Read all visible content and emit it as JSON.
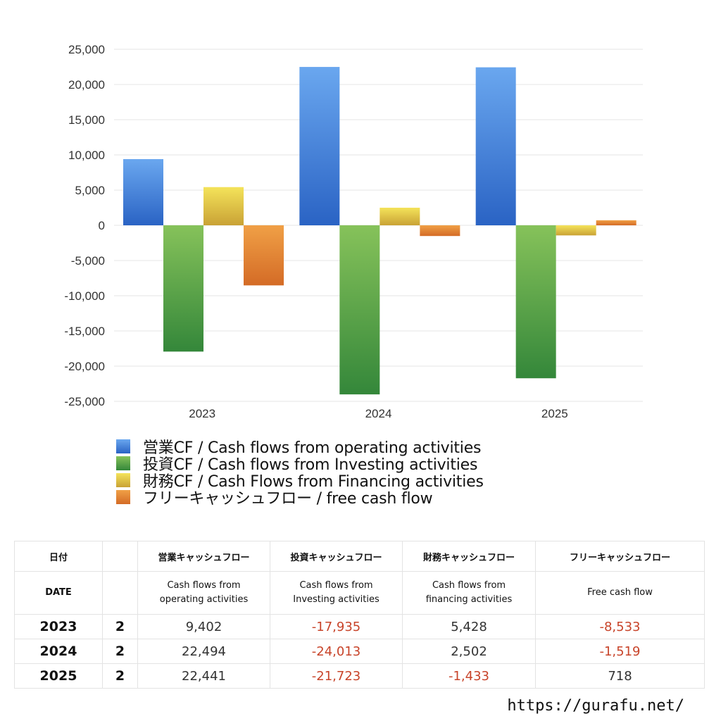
{
  "chart_data": {
    "type": "bar",
    "categories": [
      "2023",
      "2024",
      "2025"
    ],
    "ylim": [
      -25000,
      25000
    ],
    "yticks": [
      25000,
      20000,
      15000,
      10000,
      5000,
      0,
      -5000,
      -10000,
      -15000,
      -20000,
      -25000
    ],
    "ytick_labels": [
      "25,000",
      "20,000",
      "15,000",
      "10,000",
      "5,000",
      "0",
      "-5,000",
      "-10,000",
      "-15,000",
      "-20,000",
      "-25,000"
    ],
    "grid": true,
    "legend_position": "bottom",
    "series": [
      {
        "name": "営業CF / Cash flows from operating activities",
        "values": [
          9402,
          22494,
          22441
        ],
        "color_top": "#6aa7ef",
        "color_bottom": "#2a63c4"
      },
      {
        "name": "投資CF / Cash flows from Investing activities",
        "values": [
          -17935,
          -24013,
          -21723
        ],
        "color_top": "#86c25a",
        "color_bottom": "#34873a"
      },
      {
        "name": "財務CF / Cash Flows from Financing activities",
        "values": [
          5428,
          2502,
          -1433
        ],
        "color_top": "#f4e35a",
        "color_bottom": "#c9a235"
      },
      {
        "name": "フリーキャッシュフロー / free cash flow",
        "values": [
          -8533,
          -1519,
          718
        ],
        "color_top": "#f0a046",
        "color_bottom": "#d46b26"
      }
    ]
  },
  "table": {
    "headers_jp": [
      "日付",
      "",
      "営業キャッシュフロー",
      "投資キャッシュフロー",
      "財務キャッシュフロー",
      "フリーキャッシュフロー"
    ],
    "headers_en": [
      "DATE",
      "",
      "Cash flows from\noperating activities",
      "Cash flows from\nInvesting activities",
      "Cash flows from\nfinancing activities",
      "Free cash flow"
    ],
    "rows": [
      {
        "year": "2023",
        "q": "2",
        "values": [
          "9,402",
          "-17,935",
          "5,428",
          "-8,533"
        ]
      },
      {
        "year": "2024",
        "q": "2",
        "values": [
          "22,494",
          "-24,013",
          "2,502",
          "-1,519"
        ]
      },
      {
        "year": "2025",
        "q": "2",
        "values": [
          "22,441",
          "-21,723",
          "-1,433",
          "718"
        ]
      }
    ]
  },
  "footer": {
    "url": "https://gurafu.net/"
  }
}
